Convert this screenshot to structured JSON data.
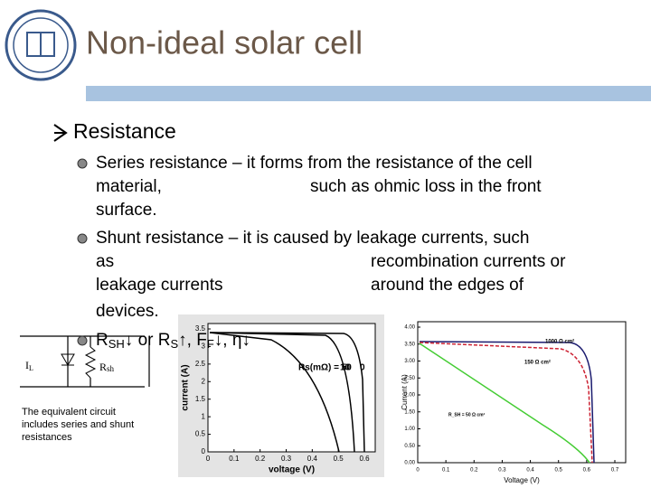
{
  "header": {
    "title": "Non-ideal solar cell"
  },
  "section": {
    "heading": "Resistance"
  },
  "bullets": [
    {
      "lines": [
        [
          "Series resistance – it forms from the resistance of the cell"
        ],
        [
          "material,",
          "such as ohmic loss in the front"
        ],
        [
          "surface."
        ]
      ]
    },
    {
      "lines": [
        [
          "Shunt resistance – it is caused by leakage currents, such"
        ],
        [
          "as",
          "recombination currents or"
        ],
        [
          "leakage currents",
          "around the edges of"
        ],
        [
          "devices."
        ]
      ]
    },
    {
      "parts": [
        "R",
        "SH",
        "↓ or R",
        "S",
        "↑, F",
        "F",
        "↓, η↓"
      ]
    }
  ],
  "circuit": {
    "source": [
      "I",
      "L"
    ],
    "resistor": [
      "R",
      "sh"
    ],
    "caption": [
      "The equivalent circuit",
      "includes series and shunt",
      "resistances"
    ]
  },
  "figure_left": {
    "x_label": "voltage (V)",
    "y_label": "current (A)",
    "annotation": "Rs(mΩ) = 50",
    "curve_labels": [
      "10",
      "0"
    ],
    "xticks": [
      "0",
      "0.1",
      "0.2",
      "0.3",
      "0.4",
      "0.5",
      "0.6"
    ],
    "yticks": [
      "0",
      "0.5",
      "1",
      "1.5",
      "2",
      "2.5",
      "3",
      "3.5"
    ]
  },
  "figure_right": {
    "x_label": "Voltage (V)",
    "y_label": "Current (A)",
    "curve_labels": [
      "1000 Ω cm²",
      "150 Ω cm²",
      "R_SH = 50 Ω cm²"
    ],
    "xticks": [
      "0",
      "0.1",
      "0.2",
      "0.3",
      "0.4",
      "0.5",
      "0.6",
      "0.7"
    ],
    "yticks": [
      "0.00",
      "0.50",
      "1.00",
      "1.50",
      "2.00",
      "2.50",
      "3.00",
      "3.50",
      "4.00"
    ]
  }
}
